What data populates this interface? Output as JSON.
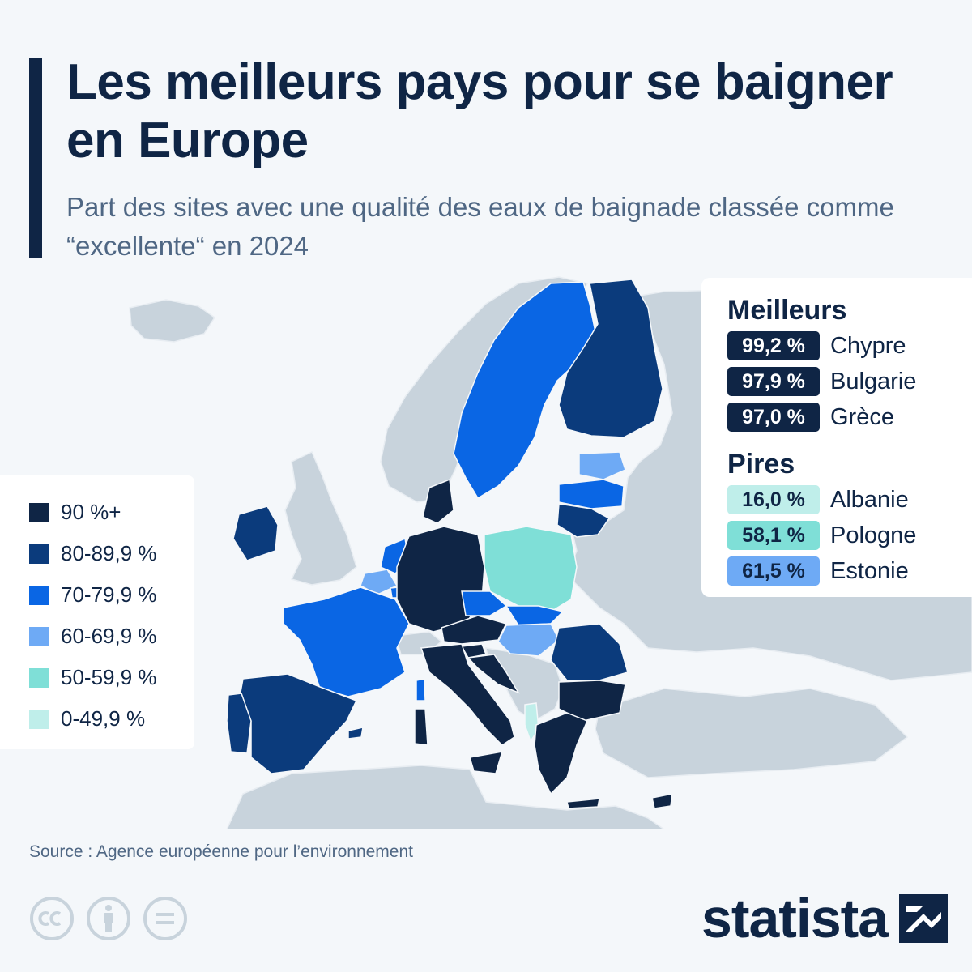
{
  "header": {
    "title": "Les meilleurs pays pour se baigner en Europe",
    "subtitle": "Part des sites avec une qualité des eaux de baignade classée comme “excellente“ en 2024"
  },
  "legend": {
    "items": [
      {
        "label": "90 %+",
        "color": "#0f2545"
      },
      {
        "label": "80-89,9 %",
        "color": "#0b3b7c"
      },
      {
        "label": "70-79,9 %",
        "color": "#0a66e4"
      },
      {
        "label": "60-69,9 %",
        "color": "#6eaaf5"
      },
      {
        "label": "50-59,9 %",
        "color": "#7fdfd7"
      },
      {
        "label": "0-49,9 %",
        "color": "#bfeeea"
      }
    ]
  },
  "ranking": {
    "best_heading": "Meilleurs",
    "best": [
      {
        "value": "99,2 %",
        "country": "Chypre"
      },
      {
        "value": "97,9 %",
        "country": "Bulgarie"
      },
      {
        "value": "97,0 %",
        "country": "Grèce"
      }
    ],
    "worst_heading": "Pires",
    "worst": [
      {
        "value": "16,0 %",
        "country": "Albanie",
        "color": "#bfeeea"
      },
      {
        "value": "58,1 %",
        "country": "Pologne",
        "color": "#7fdfd7"
      },
      {
        "value": "61,5 %",
        "country": "Estonie",
        "color": "#6eaaf5"
      }
    ]
  },
  "colors": {
    "background": "#f4f7fa",
    "non_eu_land": "#c8d3dc",
    "text_primary": "#0f2545",
    "text_secondary": "#4f6784"
  },
  "footer": {
    "source": "Source : Agence européenne pour l’environnement",
    "brand": "statista",
    "license_icons": [
      "cc-icon",
      "attribution-icon",
      "no-derivatives-icon"
    ]
  }
}
